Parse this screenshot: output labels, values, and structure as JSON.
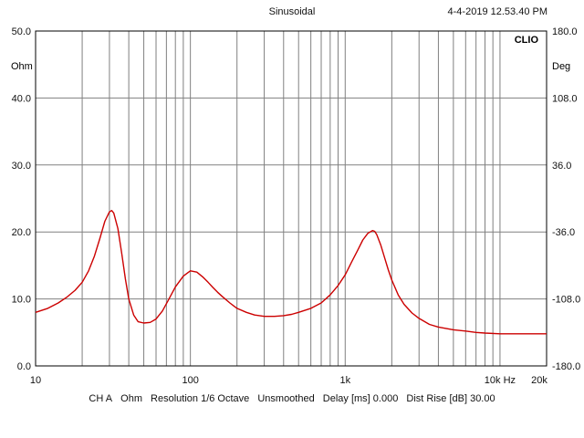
{
  "header": {
    "title": "Sinusoidal",
    "datetime": "4-4-2019 12.53.40 PM",
    "logo": "CLIO"
  },
  "footer": {
    "channel": "CH A",
    "unit": "Ohm",
    "resolution": "Resolution 1/6 Octave",
    "smoothing": "Unsmoothed",
    "delay": "Delay [ms] 0.000",
    "dist_rise": "Dist Rise [dB] 30.00"
  },
  "colors": {
    "curve": "#cc0000",
    "grid": "#808080",
    "frame": "#000000",
    "background": "#ffffff"
  },
  "chart_data": {
    "type": "line",
    "xscale": "log",
    "xlim": [
      10,
      20000
    ],
    "ylim": [
      0,
      50
    ],
    "y2lim": [
      -180,
      180
    ],
    "left_unit": "Ohm",
    "right_unit": "Deg",
    "x_tick_labels": [
      {
        "value": 10,
        "label": "10"
      },
      {
        "value": 100,
        "label": "100"
      },
      {
        "value": 1000,
        "label": "1k"
      },
      {
        "value": 10000,
        "label": "10k Hz"
      },
      {
        "value": 20000,
        "label": "20k"
      }
    ],
    "y_tick_labels": [
      {
        "value": 50,
        "label": "50.0"
      },
      {
        "value": 40,
        "label": "40.0"
      },
      {
        "value": 30,
        "label": "30.0"
      },
      {
        "value": 20,
        "label": "20.0"
      },
      {
        "value": 10,
        "label": "10.0"
      },
      {
        "value": 0,
        "label": "0.0"
      }
    ],
    "y2_tick_labels": [
      {
        "value": 180,
        "label": "180.0"
      },
      {
        "value": 108,
        "label": "108.0"
      },
      {
        "value": 36,
        "label": "36.0"
      },
      {
        "value": -36,
        "label": "-36.0"
      },
      {
        "value": -108,
        "label": "-108.0"
      },
      {
        "value": -180,
        "label": "-180.0"
      }
    ],
    "grid": true,
    "series": [
      {
        "x": [
          10,
          12,
          14,
          16,
          18,
          20,
          22,
          24,
          26,
          28,
          30,
          31,
          32,
          34,
          36,
          38,
          40,
          43,
          46,
          50,
          55,
          60,
          66,
          72,
          80,
          90,
          100,
          110,
          120,
          130,
          140,
          150,
          160,
          180,
          200,
          230,
          260,
          300,
          350,
          400,
          450,
          500,
          600,
          700,
          800,
          900,
          1000,
          1100,
          1200,
          1300,
          1400,
          1500,
          1550,
          1600,
          1700,
          1800,
          1900,
          2000,
          2200,
          2400,
          2700,
          3000,
          3500,
          4000,
          5000,
          6000,
          7000,
          8000,
          10000,
          12000,
          15000,
          20000
        ],
        "y": [
          8.0,
          8.6,
          9.4,
          10.3,
          11.3,
          12.5,
          14.2,
          16.4,
          19.0,
          21.6,
          23.0,
          23.2,
          22.8,
          20.5,
          16.8,
          13.0,
          10.0,
          7.6,
          6.6,
          6.4,
          6.5,
          7.0,
          8.2,
          9.8,
          11.8,
          13.4,
          14.2,
          14.0,
          13.3,
          12.5,
          11.7,
          11.0,
          10.4,
          9.4,
          8.6,
          8.0,
          7.6,
          7.4,
          7.4,
          7.5,
          7.7,
          8.0,
          8.6,
          9.4,
          10.6,
          12.0,
          13.6,
          15.5,
          17.2,
          18.8,
          19.8,
          20.2,
          20.1,
          19.6,
          18.0,
          16.1,
          14.3,
          12.8,
          10.6,
          9.2,
          7.9,
          7.1,
          6.2,
          5.8,
          5.4,
          5.2,
          5.0,
          4.9,
          4.8,
          4.8,
          4.8,
          4.8
        ]
      }
    ]
  }
}
